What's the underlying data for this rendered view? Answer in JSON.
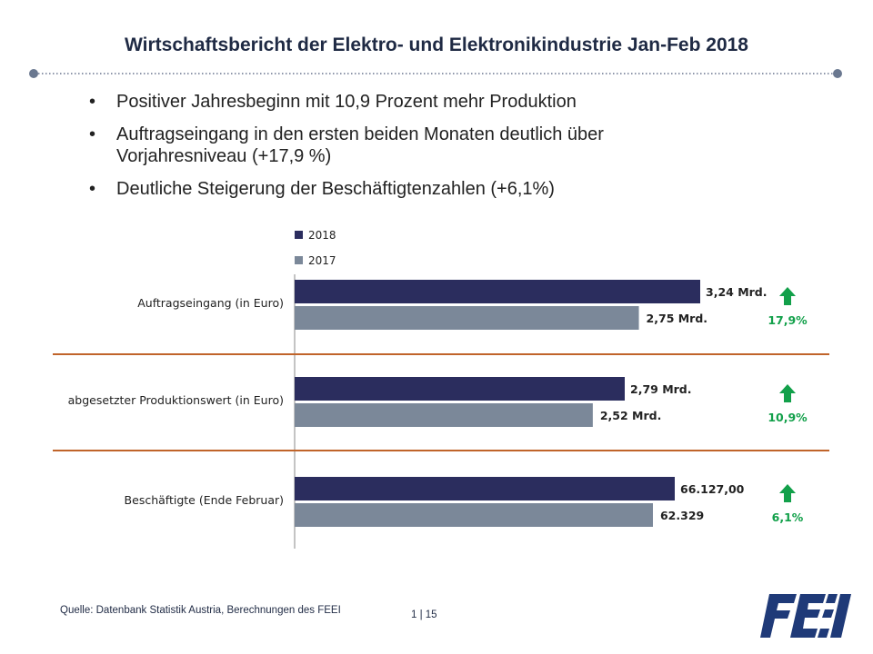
{
  "title": "Wirtschaftsbericht der Elektro- und Elektronikindustrie Jan-Feb 2018",
  "bullets": [
    {
      "line1": "Positiver Jahresbeginn mit 10,9 Prozent mehr Produktion",
      "line2": ""
    },
    {
      "line1": "Auftragseingang in den ersten beiden Monaten deutlich über",
      "line2": "Vorjahresniveau (+17,9 %)"
    },
    {
      "line1": "Deutliche Steigerung der Beschäftigtenzahlen (+6,1%)",
      "line2": ""
    }
  ],
  "bullet_glyph": "•",
  "chart_data": {
    "type": "bar",
    "orientation": "horizontal",
    "legend": [
      "2018",
      "2017"
    ],
    "legend_placement": "top-left",
    "colors": {
      "2018": "#2b2d5e",
      "2017": "#7b8899",
      "separator": "#c0642a",
      "increase": "#12a04a"
    },
    "grid": false,
    "categories": [
      "Auftragseingang (in Euro)",
      "abgesetzter Produktionswert (in Euro)",
      "Beschäftigte (Ende Februar)"
    ],
    "series": [
      {
        "name": "2018",
        "values": [
          3.24,
          2.79,
          66127.0
        ],
        "labels": [
          "3,24 Mrd.",
          "2,79 Mrd.",
          "66.127,00"
        ]
      },
      {
        "name": "2017",
        "values": [
          2.75,
          2.52,
          62329
        ],
        "labels": [
          "2,75 Mrd.",
          "2,52 Mrd.",
          "62.329"
        ]
      }
    ],
    "change": [
      "17,9%",
      "10,9%",
      "6,1%"
    ],
    "change_icon": "up-arrow-icon"
  },
  "footer": {
    "source": "Quelle: Datenbank Statistik Austria, Berechnungen des FEEI",
    "page": "1 | 15"
  },
  "logo": {
    "text": "FEEI",
    "color": "#1f3a78",
    "icon": "feei-logo"
  }
}
